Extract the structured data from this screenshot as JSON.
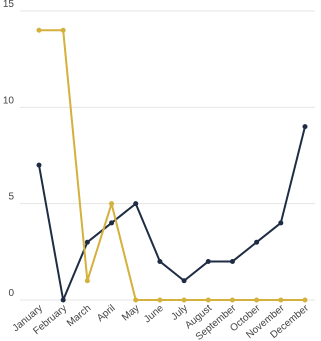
{
  "chart_data": {
    "type": "line",
    "title": "",
    "xlabel": "",
    "ylabel": "",
    "categories": [
      "January",
      "February",
      "March",
      "April",
      "May",
      "June",
      "July",
      "August",
      "September",
      "October",
      "November",
      "December"
    ],
    "ylim": [
      0,
      15
    ],
    "yticks": [
      0,
      5,
      10,
      15
    ],
    "grid": true,
    "legend": "none",
    "series": [
      {
        "color": "#1f2d44",
        "values": [
          7,
          0,
          3,
          4,
          5,
          2,
          1,
          2,
          2,
          3,
          4,
          9
        ]
      },
      {
        "color": "#d4b03c",
        "values": [
          14,
          14,
          1,
          5,
          0,
          0,
          0,
          0,
          0,
          0,
          0,
          0
        ]
      }
    ]
  }
}
